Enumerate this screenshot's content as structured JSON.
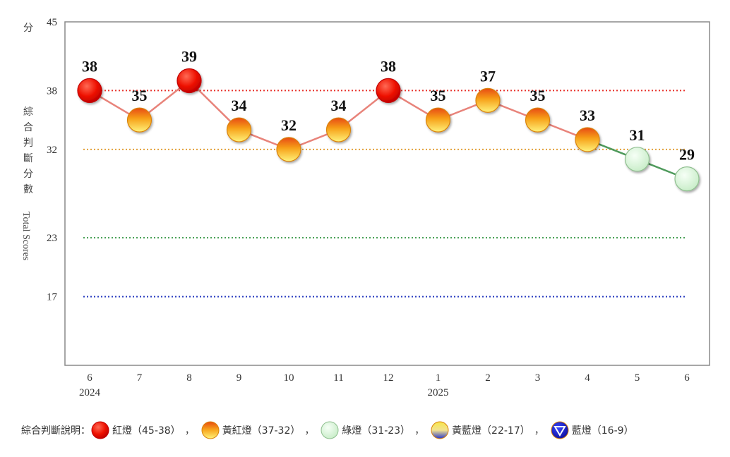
{
  "chart_data": {
    "type": "line",
    "y_axis": {
      "unit_label": "分",
      "ylim": [
        10,
        45
      ],
      "ticks": [
        45,
        38,
        32,
        23,
        17
      ],
      "label_cjk": [
        "綜",
        "合",
        "判",
        "斷",
        "分",
        "數"
      ],
      "label_en": "Total Scores"
    },
    "categories": [
      "6",
      "7",
      "8",
      "9",
      "10",
      "11",
      "12",
      "1",
      "2",
      "3",
      "4",
      "5",
      "6"
    ],
    "year_labels": [
      {
        "index": 0,
        "text": "2024"
      },
      {
        "index": 7,
        "text": "2025"
      }
    ],
    "values": [
      38,
      35,
      39,
      34,
      32,
      34,
      38,
      35,
      37,
      35,
      33,
      31,
      29
    ],
    "reference_lines": [
      {
        "value": 38,
        "color": "#e8322b"
      },
      {
        "value": 32,
        "color": "#e2a13a"
      },
      {
        "value": 23,
        "color": "#3c9a4a"
      },
      {
        "value": 17,
        "color": "#2b3ec0"
      }
    ],
    "line_colors": {
      "red_yellow": "#e8837a",
      "green": "#4f9a5c"
    },
    "signal_colors": {
      "red": "#e60000",
      "yellow_red": "#f5a000",
      "green": "#d9f5d9",
      "yellow_blue": "#f0d838",
      "blue": "#1a1acc"
    }
  },
  "legend": {
    "title": "綜合判斷說明：",
    "separator": "，",
    "items": [
      {
        "signal": "red",
        "label": "紅燈（45-38）"
      },
      {
        "signal": "yellow_red",
        "label": "黃紅燈（37-32）"
      },
      {
        "signal": "green",
        "label": "綠燈（31-23）"
      },
      {
        "signal": "yellow_blue",
        "label": "黃藍燈（22-17）"
      },
      {
        "signal": "blue",
        "label": "藍燈（16-9）"
      }
    ]
  }
}
